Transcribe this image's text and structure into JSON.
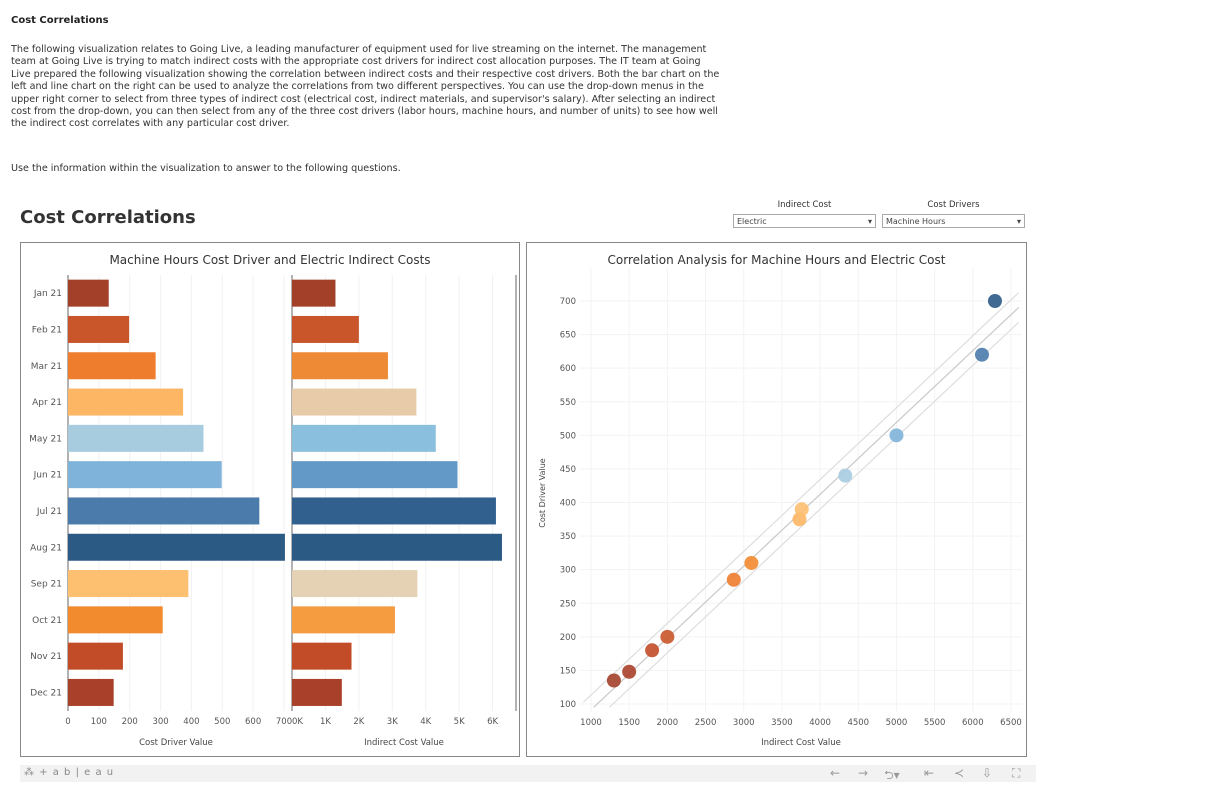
{
  "page": {
    "heading": "Cost Correlations",
    "intro": "The following visualization relates to Going Live, a leading manufacturer of equipment used for live streaming on the internet. The management team at Going Live is trying to match indirect costs with the appropriate cost drivers for indirect cost allocation purposes. The IT team at Going Live prepared the following visualization showing the correlation between indirect costs and their respective cost drivers. Both the bar chart on the left and line chart on the right can be used to analyze the correlations from two different perspectives. You can use the drop-down menus in the upper right corner to select from three types of indirect cost (electrical cost, indirect materials, and supervisor's salary). After selecting an indirect cost from the drop-down, you can then select from any of the three cost drivers (labor hours, machine hours, and number of units) to see how well the indirect cost correlates with any particular cost driver.",
    "instruction": "Use the information within the visualization to answer to the following questions."
  },
  "dashboard": {
    "title": "Cost Correlations",
    "filters": [
      {
        "label": "Indirect Cost",
        "value": "Electric"
      },
      {
        "label": "Cost Drivers",
        "value": "Machine Hours"
      }
    ]
  },
  "footer": {
    "logo": "+ a b | e a u",
    "icons": [
      "undo-icon",
      "redo-icon",
      "revert-icon",
      "reset-icon",
      "share-icon",
      "download-icon",
      "fullscreen-icon"
    ]
  },
  "chart_data": [
    {
      "type": "bar",
      "orientation": "horizontal",
      "title": "Machine Hours Cost Driver and Electric Indirect Costs",
      "categories": [
        "Jan 21",
        "Feb 21",
        "Mar 21",
        "Apr 21",
        "May 21",
        "Jun 21",
        "Jul 21",
        "Aug 21",
        "Sep 21",
        "Oct 21",
        "Nov 21",
        "Dec 21"
      ],
      "panes": [
        {
          "xlabel": "Cost Driver Value",
          "xlim": [
            0,
            700
          ],
          "ticks": [
            "0",
            "100",
            "200",
            "300",
            "400",
            "500",
            "600",
            "700"
          ],
          "tick_values": [
            0,
            100,
            200,
            300,
            400,
            500,
            600,
            700
          ],
          "values": [
            132,
            198,
            284,
            373,
            439,
            498,
            620,
            703,
            390,
            307,
            178,
            148
          ],
          "colors": [
            "#a3402a",
            "#c9552a",
            "#ee7d2e",
            "#fdb663",
            "#a7cce0",
            "#80b3d9",
            "#4a7bab",
            "#2b5a85",
            "#fdbf70",
            "#f28a2e",
            "#c24c28",
            "#a8402a"
          ]
        },
        {
          "xlabel": "Indirect Cost Value",
          "xlim": [
            0,
            6700
          ],
          "ticks": [
            "0K",
            "1K",
            "2K",
            "3K",
            "4K",
            "5K",
            "6K"
          ],
          "tick_values": [
            0,
            1000,
            2000,
            3000,
            4000,
            5000,
            6000
          ],
          "values": [
            1300,
            2000,
            2870,
            3720,
            4300,
            4950,
            6100,
            6280,
            3750,
            3080,
            1780,
            1490
          ],
          "colors": [
            "#a3402a",
            "#c9552a",
            "#ee8a35",
            "#e8cba8",
            "#8bbfde",
            "#6399c6",
            "#31608e",
            "#2b5a85",
            "#e5d2b4",
            "#f59b40",
            "#c24c28",
            "#a8402a"
          ]
        }
      ]
    },
    {
      "type": "scatter",
      "title": "Correlation Analysis for Machine Hours and Electric Cost",
      "xlabel": "Indirect Cost Value",
      "ylabel": "Cost Driver Value",
      "xlim": [
        900,
        6600
      ],
      "ylim": [
        90,
        735
      ],
      "xticks": [
        1000,
        1500,
        2000,
        2500,
        3000,
        3500,
        4000,
        4500,
        5000,
        5500,
        6000,
        6500
      ],
      "yticks": [
        100,
        150,
        200,
        250,
        300,
        350,
        400,
        450,
        500,
        550,
        600,
        650,
        700
      ],
      "trend_line": true,
      "grid": true,
      "points": [
        {
          "x": 1300,
          "y": 135,
          "color": "#a3402a"
        },
        {
          "x": 1500,
          "y": 148,
          "color": "#a8402a"
        },
        {
          "x": 1800,
          "y": 180,
          "color": "#c24c28"
        },
        {
          "x": 2000,
          "y": 200,
          "color": "#c9552a"
        },
        {
          "x": 2870,
          "y": 285,
          "color": "#ee7d2e"
        },
        {
          "x": 3100,
          "y": 310,
          "color": "#f28a2e"
        },
        {
          "x": 3730,
          "y": 375,
          "color": "#fdb663"
        },
        {
          "x": 3760,
          "y": 390,
          "color": "#fdbf70"
        },
        {
          "x": 4330,
          "y": 440,
          "color": "#a7cce0"
        },
        {
          "x": 5000,
          "y": 500,
          "color": "#80b3d9"
        },
        {
          "x": 6120,
          "y": 620,
          "color": "#4a7bab"
        },
        {
          "x": 6290,
          "y": 700,
          "color": "#2b5a85"
        }
      ]
    }
  ]
}
